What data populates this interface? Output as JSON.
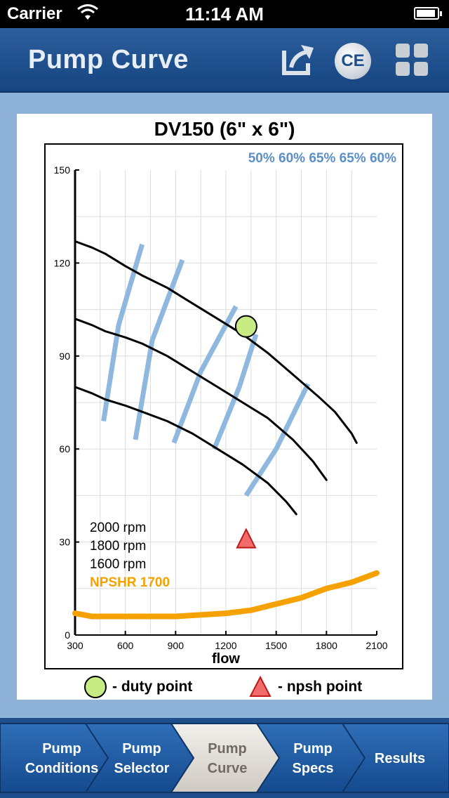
{
  "status_bar": {
    "carrier": "Carrier",
    "time": "11:14 AM"
  },
  "nav": {
    "title": "Pump Curve",
    "share_icon": "share-icon",
    "ce_label": "CE",
    "grid_icon": "grid-icon"
  },
  "chart_title": "DV150 (6\" x 6\")",
  "chart_data": {
    "type": "line",
    "title": "DV150 (6\" x 6\")",
    "xlabel": "flow",
    "ylabel": "",
    "xlim": [
      300,
      2100
    ],
    "ylim": [
      0,
      150
    ],
    "x_ticks": [
      300,
      600,
      900,
      1200,
      1500,
      1800,
      2100
    ],
    "y_ticks": [
      0,
      30,
      60,
      90,
      120,
      150
    ],
    "grid": true,
    "efficiency_labels": [
      "50%",
      "60%",
      "65%",
      "65%",
      "60%"
    ],
    "series": [
      {
        "name": "2000 rpm",
        "color": "#000000",
        "x": [
          300,
          400,
          480,
          600,
          700,
          850,
          1000,
          1150,
          1300,
          1450,
          1600,
          1750,
          1850,
          1950,
          1980
        ],
        "y": [
          127,
          125,
          123,
          119,
          116,
          112,
          107,
          102,
          97,
          91,
          84,
          77,
          72,
          65,
          62
        ]
      },
      {
        "name": "1800 rpm",
        "color": "#000000",
        "x": [
          300,
          400,
          480,
          600,
          700,
          850,
          1000,
          1150,
          1300,
          1450,
          1600,
          1720,
          1800
        ],
        "y": [
          102,
          100,
          98,
          96,
          94,
          90,
          85,
          80,
          75,
          70,
          63,
          56,
          50
        ]
      },
      {
        "name": "1600 rpm",
        "color": "#000000",
        "x": [
          300,
          400,
          480,
          600,
          700,
          850,
          1000,
          1150,
          1300,
          1450,
          1560,
          1620
        ],
        "y": [
          80,
          78,
          76,
          74,
          72,
          69,
          65,
          60,
          55,
          49,
          43,
          39
        ]
      },
      {
        "name": "NPSHR 1700",
        "color": "#f5a200",
        "x": [
          300,
          400,
          600,
          900,
          1200,
          1350,
          1500,
          1650,
          1800,
          1950,
          2100
        ],
        "y": [
          7,
          6,
          6,
          6,
          7,
          8,
          10,
          12,
          15,
          17,
          20
        ]
      }
    ],
    "efficiency_lines": [
      {
        "label": "50%",
        "x": [
          470,
          560,
          700
        ],
        "y": [
          69,
          100,
          126
        ]
      },
      {
        "label": "60%",
        "x": [
          660,
          760,
          940
        ],
        "y": [
          63,
          95,
          121
        ]
      },
      {
        "label": "65%",
        "x": [
          890,
          1050,
          1260
        ],
        "y": [
          62,
          85,
          106
        ]
      },
      {
        "label": "65%",
        "x": [
          1130,
          1280,
          1380
        ],
        "y": [
          60,
          80,
          97
        ]
      },
      {
        "label": "60%",
        "x": [
          1320,
          1500,
          1690
        ],
        "y": [
          45,
          60,
          81
        ]
      }
    ],
    "duty_point": {
      "x": 1300,
      "y": 100
    },
    "npsh_point": {
      "x": 1300,
      "y": 30
    },
    "legend": [
      "2000 rpm",
      "1800 rpm",
      "1600 rpm",
      "NPSHR 1700"
    ]
  },
  "legend_bottom": {
    "duty": "- duty point",
    "npsh": "- npsh point"
  },
  "tabs": [
    {
      "line1": "Pump",
      "line2": "Conditions"
    },
    {
      "line1": "Pump",
      "line2": "Selector"
    },
    {
      "line1": "Pump",
      "line2": "Curve"
    },
    {
      "line1": "Pump",
      "line2": "Specs"
    },
    {
      "line1": "Results",
      "line2": ""
    }
  ],
  "colors": {
    "nav_bg": "#1e4f8c",
    "page_bg": "#8fb3d8",
    "efficiency": "#8fb8df",
    "npshr": "#f5a200",
    "duty": "#c8ec84",
    "npsh": "#f26b6b"
  }
}
